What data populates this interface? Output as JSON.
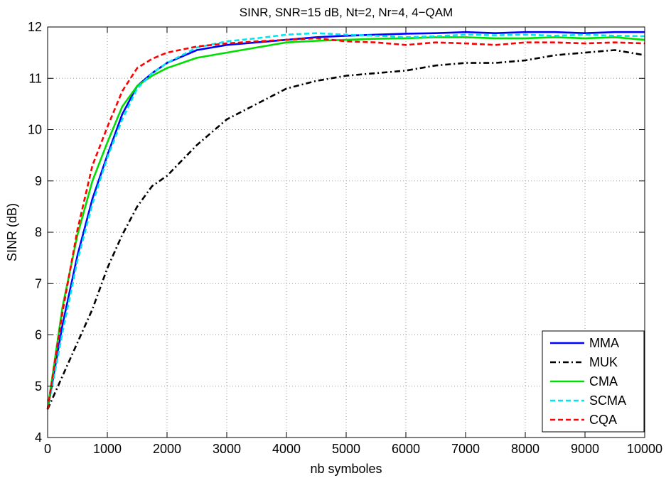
{
  "chart_data": {
    "type": "line",
    "title": "SINR, SNR=15 dB, Nt=2, Nr=4, 4−QAM",
    "xlabel": "nb symboles",
    "ylabel": "SINR (dB)",
    "xlim": [
      0,
      10000
    ],
    "ylim": [
      4,
      12
    ],
    "xticks": [
      0,
      1000,
      2000,
      3000,
      4000,
      5000,
      6000,
      7000,
      8000,
      9000,
      10000
    ],
    "yticks": [
      4,
      5,
      6,
      7,
      8,
      9,
      10,
      11,
      12
    ],
    "grid": true,
    "legend_position": "bottom-right",
    "x": [
      0,
      250,
      500,
      750,
      1000,
      1250,
      1500,
      1750,
      2000,
      2500,
      3000,
      3500,
      4000,
      4500,
      5000,
      5500,
      6000,
      6500,
      7000,
      7500,
      8000,
      8500,
      9000,
      9500,
      10000
    ],
    "series": [
      {
        "name": "MMA",
        "color": "#0000ff",
        "dash": "solid",
        "values": [
          4.55,
          6.2,
          7.55,
          8.65,
          9.5,
          10.3,
          10.85,
          11.1,
          11.3,
          11.55,
          11.65,
          11.7,
          11.75,
          11.8,
          11.83,
          11.85,
          11.87,
          11.88,
          11.9,
          11.88,
          11.9,
          11.9,
          11.88,
          11.9,
          11.9
        ]
      },
      {
        "name": "MUK",
        "color": "#000000",
        "dash": "dashdot",
        "values": [
          4.55,
          5.2,
          5.85,
          6.5,
          7.3,
          7.95,
          8.5,
          8.9,
          9.1,
          9.7,
          10.2,
          10.5,
          10.8,
          10.95,
          11.05,
          11.1,
          11.15,
          11.25,
          11.3,
          11.3,
          11.35,
          11.45,
          11.5,
          11.55,
          11.45
        ]
      },
      {
        "name": "CMA",
        "color": "#00dd00",
        "dash": "solid",
        "values": [
          4.55,
          6.55,
          7.95,
          9.0,
          9.75,
          10.45,
          10.85,
          11.05,
          11.2,
          11.4,
          11.5,
          11.6,
          11.7,
          11.73,
          11.75,
          11.77,
          11.78,
          11.8,
          11.8,
          11.78,
          11.78,
          11.8,
          11.78,
          11.8,
          11.75
        ]
      },
      {
        "name": "SCMA",
        "color": "#00e5ee",
        "dash": "dashed",
        "values": [
          4.55,
          6.05,
          7.45,
          8.55,
          9.45,
          10.2,
          10.8,
          11.1,
          11.3,
          11.6,
          11.72,
          11.78,
          11.85,
          11.88,
          11.85,
          11.83,
          11.8,
          11.82,
          11.85,
          11.84,
          11.85,
          11.83,
          11.85,
          11.83,
          11.82
        ]
      },
      {
        "name": "CQA",
        "color": "#ff0000",
        "dash": "dashed",
        "values": [
          4.55,
          6.45,
          8.05,
          9.3,
          10.05,
          10.75,
          11.2,
          11.38,
          11.5,
          11.62,
          11.68,
          11.72,
          11.75,
          11.78,
          11.72,
          11.7,
          11.65,
          11.7,
          11.68,
          11.65,
          11.7,
          11.7,
          11.68,
          11.7,
          11.68
        ]
      }
    ]
  }
}
